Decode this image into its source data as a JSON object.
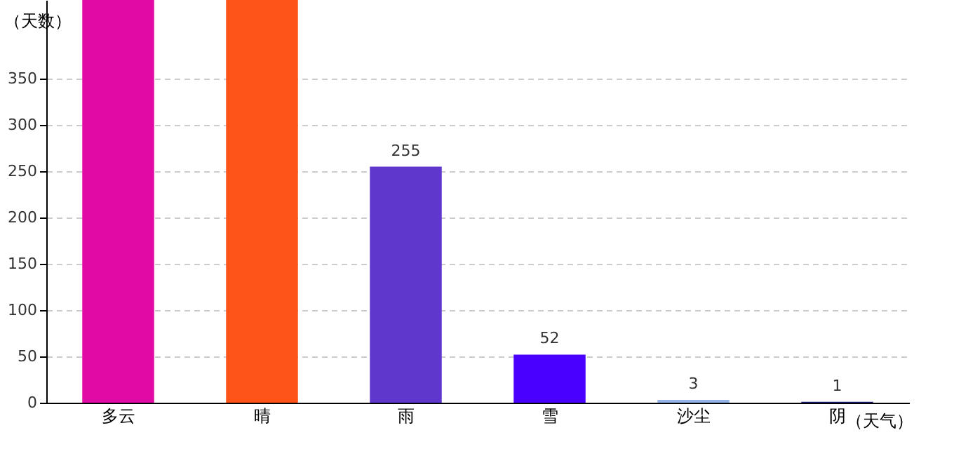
{
  "chart_data": {
    "type": "bar",
    "xlabel": "（天气）",
    "ylabel": "（天数）",
    "categories": [
      "多云",
      "晴",
      "雨",
      "雪",
      "沙尘",
      "阴"
    ],
    "values": [
      435,
      435,
      255,
      52,
      3,
      1
    ],
    "colors": [
      "#e20aa5",
      "#ff5419",
      "#5f37cc",
      "#4a00ff",
      "#94b4e8",
      "#1a1a7a"
    ],
    "value_labels": [
      null,
      null,
      "255",
      "52",
      "3",
      "1"
    ],
    "ylim": [
      0,
      435
    ],
    "yticks": [
      0,
      50,
      100,
      150,
      200,
      250,
      300,
      350
    ],
    "grid": "y"
  }
}
